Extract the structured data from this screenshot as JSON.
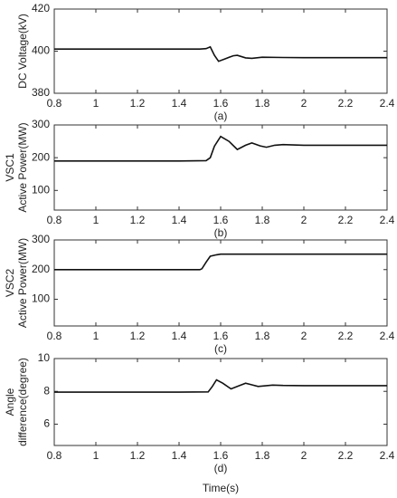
{
  "chart_data": [
    {
      "type": "line",
      "ylabel": [
        "DC Voltage(kV)"
      ],
      "caption": "(a)",
      "color": "#111111",
      "x": [
        0.8,
        1.0,
        1.2,
        1.4,
        1.5,
        1.53,
        1.55,
        1.57,
        1.59,
        1.62,
        1.66,
        1.68,
        1.72,
        1.75,
        1.8,
        1.9,
        2.0,
        2.2,
        2.4
      ],
      "values": [
        401,
        401,
        401,
        401,
        401,
        401.2,
        402,
        398,
        395.2,
        396.3,
        397.8,
        398,
        396.8,
        396.6,
        397.1,
        397,
        396.9,
        396.9,
        396.9
      ],
      "xlim": [
        0.8,
        2.4
      ],
      "xticks": [
        0.8,
        1,
        1.2,
        1.4,
        1.6,
        1.8,
        2,
        2.2,
        2.4
      ],
      "ylim": [
        380,
        420
      ],
      "yticks": [
        380,
        400,
        420
      ]
    },
    {
      "type": "line",
      "ylabel": [
        "VSC1",
        "Active Power(MW)"
      ],
      "caption": "(b)",
      "color": "#111111",
      "x": [
        0.8,
        1.0,
        1.2,
        1.4,
        1.53,
        1.55,
        1.57,
        1.6,
        1.64,
        1.68,
        1.72,
        1.75,
        1.79,
        1.82,
        1.86,
        1.9,
        2.0,
        2.2,
        2.4
      ],
      "values": [
        190,
        190,
        190,
        190,
        191,
        200,
        235,
        265,
        250,
        225,
        238,
        245,
        236,
        232,
        238,
        240,
        238,
        238,
        238
      ],
      "xlim": [
        0.8,
        2.4
      ],
      "xticks": [
        0.8,
        1,
        1.2,
        1.4,
        1.6,
        1.8,
        2,
        2.2,
        2.4
      ],
      "ylim": [
        40,
        300
      ],
      "yticks": [
        100,
        200,
        300
      ]
    },
    {
      "type": "line",
      "ylabel": [
        "VSC2",
        "Active Power(MW)"
      ],
      "caption": "(c)",
      "color": "#111111",
      "x": [
        0.8,
        1.0,
        1.2,
        1.4,
        1.5,
        1.51,
        1.53,
        1.55,
        1.58,
        1.6,
        1.8,
        2.0,
        2.2,
        2.4
      ],
      "values": [
        200,
        200,
        200,
        200,
        200,
        203,
        225,
        245,
        250,
        252,
        252,
        252,
        252,
        252
      ],
      "xlim": [
        0.8,
        2.4
      ],
      "xticks": [
        0.8,
        1,
        1.2,
        1.4,
        1.6,
        1.8,
        2,
        2.2,
        2.4
      ],
      "ylim": [
        10,
        300
      ],
      "yticks": [
        100,
        200,
        300
      ]
    },
    {
      "type": "line",
      "ylabel": [
        "Angle",
        "difference(degree)"
      ],
      "caption": "(d)",
      "xlabel": "Time(s)",
      "color": "#111111",
      "x": [
        0.8,
        1.0,
        1.2,
        1.4,
        1.54,
        1.56,
        1.58,
        1.61,
        1.65,
        1.69,
        1.72,
        1.75,
        1.78,
        1.85,
        1.9,
        2.0,
        2.2,
        2.4
      ],
      "values": [
        7.95,
        7.95,
        7.95,
        7.95,
        7.97,
        8.3,
        8.7,
        8.5,
        8.15,
        8.35,
        8.5,
        8.4,
        8.3,
        8.38,
        8.36,
        8.35,
        8.35,
        8.35
      ],
      "xlim": [
        0.8,
        2.4
      ],
      "xticks": [
        0.8,
        1,
        1.2,
        1.4,
        1.6,
        1.8,
        2,
        2.2,
        2.4
      ],
      "ylim": [
        4.7,
        10
      ],
      "yticks": [
        6,
        8,
        10
      ]
    }
  ]
}
